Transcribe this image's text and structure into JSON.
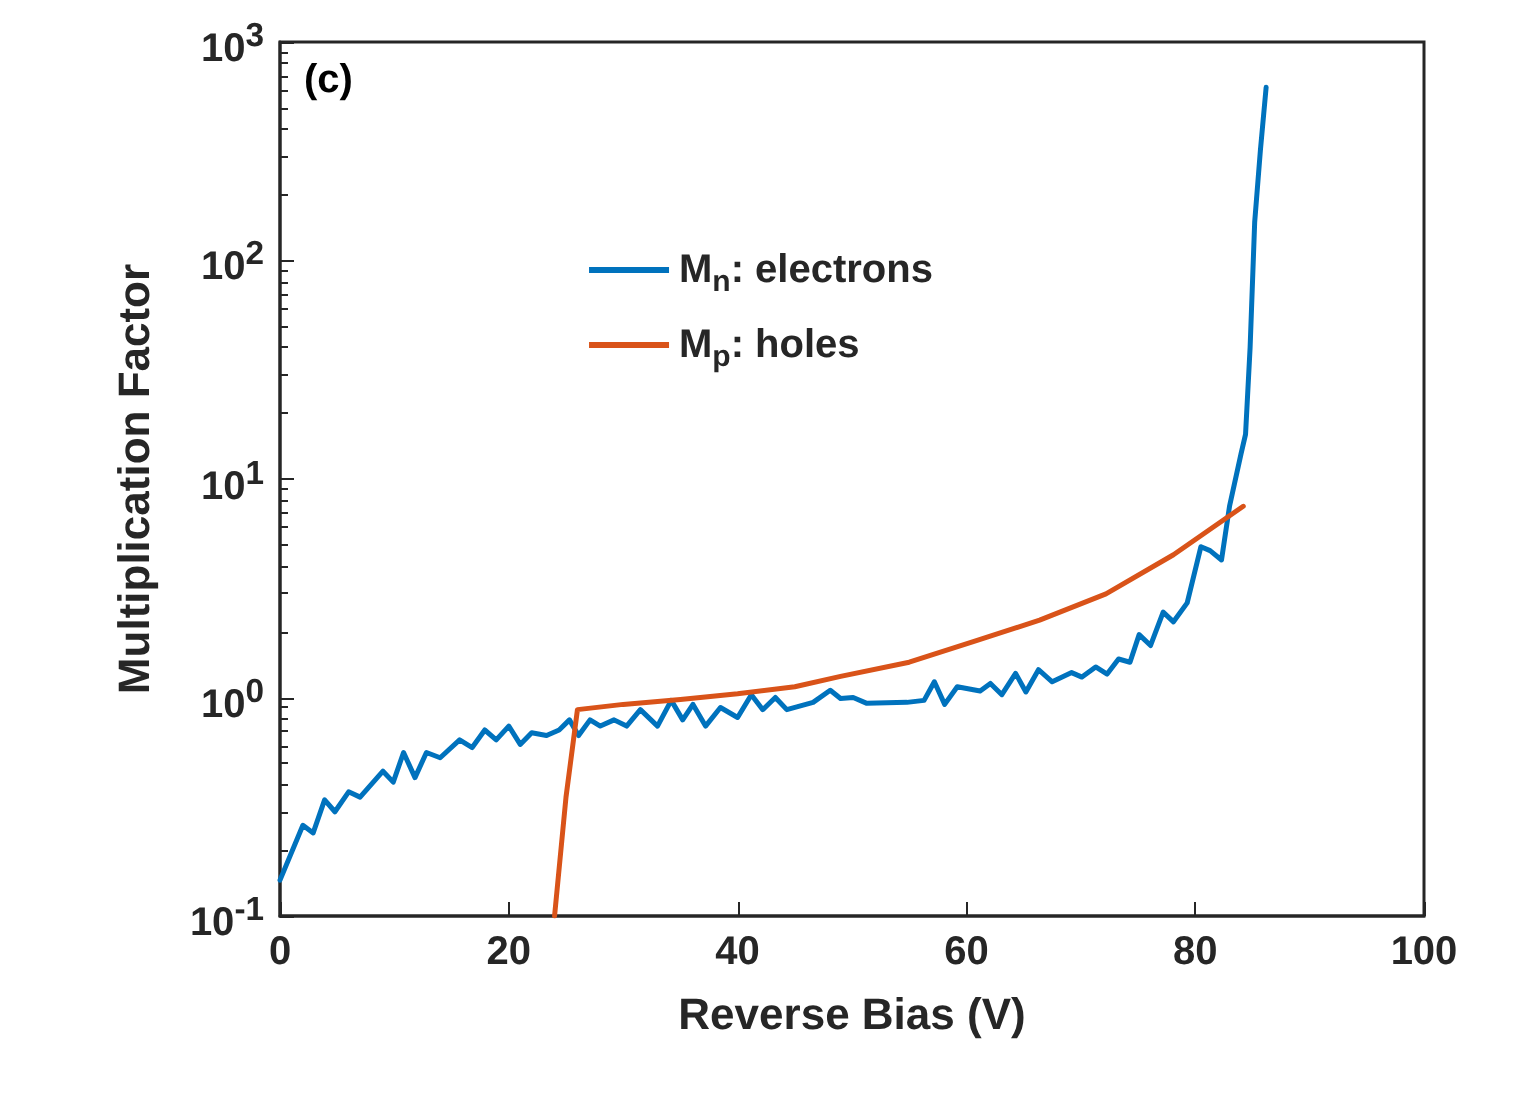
{
  "chart_data": {
    "type": "line",
    "xlabel": "Reverse Bias (V)",
    "ylabel": "Multiplication Factor",
    "annotations": [
      "(c)"
    ],
    "log": "y",
    "grid": false,
    "legend": "top",
    "marker": "none",
    "line_style": "solid",
    "xlim": [
      0,
      100
    ],
    "xticks": [
      0,
      20,
      40,
      60,
      80,
      100
    ],
    "ylim": [
      0.1,
      1000
    ],
    "yticks": [
      {
        "value": 0.1,
        "label": "10$^{-1}$"
      },
      {
        "value": 1,
        "label": "10$^{0}$"
      },
      {
        "value": 10,
        "label": "10$^{1}$"
      },
      {
        "value": 100,
        "label": "10$^{2}$"
      },
      {
        "value": 1000,
        "label": "10$^{3}$"
      }
    ],
    "series": [
      {
        "name": "M$_{n}$: electrons",
        "color": "#0072bd",
        "x": [
          0,
          2.0,
          2.9,
          3.9,
          4.8,
          6.0,
          7.0,
          9.0,
          9.9,
          10.8,
          11.8,
          12.8,
          14.0,
          15.7,
          16.8,
          17.9,
          18.9,
          20.0,
          21.0,
          22.0,
          23.3,
          24.4,
          25.3,
          26.1,
          27.1,
          28.0,
          29.2,
          30.3,
          31.5,
          33.0,
          34.2,
          35.2,
          36.1,
          37.2,
          38.5,
          40.0,
          41.2,
          42.2,
          43.3,
          44.3,
          46.6,
          48.1,
          49.0,
          50.1,
          51.3,
          54.8,
          56.3,
          57.2,
          58.1,
          59.2,
          61.2,
          62.1,
          63.1,
          64.3,
          65.2,
          66.3,
          67.5,
          69.2,
          70.1,
          71.3,
          72.3,
          73.3,
          74.3,
          75.1,
          76.1,
          77.2,
          78.1,
          79.3,
          80.5,
          81.3,
          82.3,
          83.0,
          84.0,
          84.4,
          84.8,
          85.2,
          85.7,
          86.2
        ],
        "values": [
          0.146,
          0.26,
          0.24,
          0.34,
          0.3,
          0.37,
          0.35,
          0.46,
          0.41,
          0.56,
          0.43,
          0.56,
          0.53,
          0.64,
          0.59,
          0.71,
          0.64,
          0.74,
          0.61,
          0.69,
          0.67,
          0.71,
          0.79,
          0.67,
          0.79,
          0.74,
          0.79,
          0.74,
          0.88,
          0.74,
          0.97,
          0.79,
          0.93,
          0.74,
          0.9,
          0.81,
          1.03,
          0.88,
          1.0,
          0.88,
          0.95,
          1.08,
          0.99,
          1.0,
          0.94,
          0.95,
          0.97,
          1.18,
          0.93,
          1.12,
          1.07,
          1.16,
          1.03,
          1.29,
          1.06,
          1.34,
          1.18,
          1.3,
          1.24,
          1.38,
          1.28,
          1.5,
          1.45,
          1.94,
          1.73,
          2.46,
          2.22,
          2.71,
          4.9,
          4.7,
          4.26,
          7.5,
          13,
          16,
          40,
          150,
          320,
          620
        ]
      },
      {
        "name": "M$_{p}$: holes",
        "color": "#d95319",
        "x": [
          24,
          25,
          26,
          30,
          35,
          40,
          45,
          49,
          55,
          60.6,
          66.4,
          72.2,
          78.1,
          84.2
        ],
        "values": [
          0.1,
          0.35,
          0.88,
          0.93,
          0.98,
          1.04,
          1.12,
          1.25,
          1.45,
          1.8,
          2.26,
          2.98,
          4.5,
          7.5
        ]
      }
    ]
  }
}
